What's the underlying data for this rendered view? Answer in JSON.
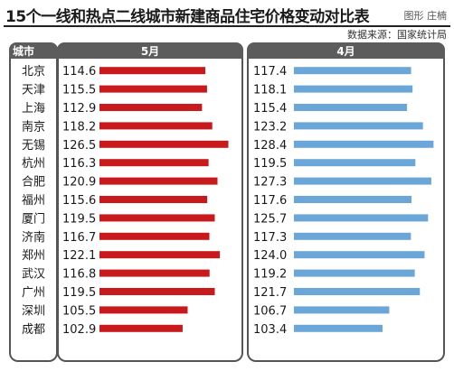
{
  "title": "15个一线和热点二线城市新建商品住宅价格变动对比表",
  "credit": "图形 庄楠",
  "source": "数据来源：国家统计局",
  "headers": {
    "city": "城市",
    "may": "5月",
    "april": "4月"
  },
  "colors": {
    "may_bar": "#c8191c",
    "april_bar": "#6aa6d8",
    "header_bg": "#5c5c5c"
  },
  "chart_data": {
    "type": "bar",
    "orientation": "horizontal",
    "title": "15个一线和热点二线城市新建商品住宅价格变动对比表",
    "categories": [
      "北京",
      "天津",
      "上海",
      "南京",
      "无锡",
      "杭州",
      "合肥",
      "福州",
      "厦门",
      "济南",
      "郑州",
      "武汉",
      "广州",
      "深圳",
      "成都"
    ],
    "series": [
      {
        "name": "5月",
        "values": [
          114.6,
          115.5,
          112.9,
          118.2,
          126.5,
          116.3,
          120.9,
          115.6,
          119.5,
          116.7,
          122.1,
          116.8,
          119.5,
          105.5,
          102.9
        ],
        "color": "#c8191c"
      },
      {
        "name": "4月",
        "values": [
          117.4,
          118.1,
          115.4,
          123.2,
          128.4,
          119.5,
          127.3,
          117.6,
          125.7,
          117.3,
          124.0,
          119.2,
          121.7,
          106.7,
          103.4
        ],
        "color": "#6aa6d8"
      }
    ],
    "value_labels": {
      "5月": [
        "114.6",
        "115.5",
        "112.9",
        "118.2",
        "126.5",
        "116.3",
        "120.9",
        "115.6",
        "119.5",
        "116.7",
        "122.1",
        "116.8",
        "119.5",
        "105.5",
        "102.9"
      ],
      "4月": [
        "117.4",
        "118.1",
        "115.4",
        "123.2",
        "128.4",
        "119.5",
        "127.3",
        "117.6",
        "125.7",
        "117.3",
        "124.0",
        "119.2",
        "121.7",
        "106.7",
        "103.4"
      ]
    },
    "xlim": [
      60,
      130
    ],
    "grid": false,
    "legend": "none"
  }
}
